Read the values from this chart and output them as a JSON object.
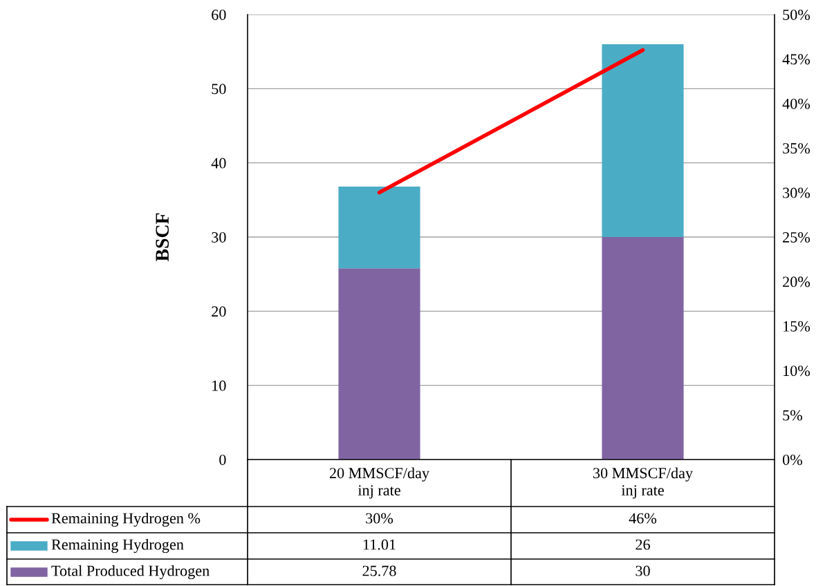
{
  "chart_data": {
    "type": "bar",
    "stacked": true,
    "ylabel": "BSCF",
    "categories": [
      "20 MMSCF/day\ninj rate",
      "30 MMSCF/day\ninj rate"
    ],
    "series": [
      {
        "name": "Total Produced Hydrogen",
        "color": "#8064a2",
        "values": [
          25.78,
          30
        ],
        "value_labels": [
          "25.78",
          "30"
        ]
      },
      {
        "name": "Remaining Hydrogen",
        "color": "#4bacc6",
        "values": [
          11.01,
          26
        ],
        "value_labels": [
          "11.01",
          "26"
        ]
      },
      {
        "name": "Remaining Hydrogen %",
        "type": "line",
        "axis": "y2",
        "color": "#ff0000",
        "values": [
          30,
          46
        ],
        "value_labels": [
          "30%",
          "46%"
        ]
      }
    ],
    "ylim": [
      0,
      60
    ],
    "yticks": [
      0,
      10,
      20,
      30,
      40,
      50,
      60
    ],
    "y2lim": [
      0,
      50
    ],
    "y2ticks": [
      {
        "value": 0,
        "label": "0%"
      },
      {
        "value": 5,
        "label": "5%"
      },
      {
        "value": 10,
        "label": "10%"
      },
      {
        "value": 15,
        "label": "15%"
      },
      {
        "value": 20,
        "label": "20%"
      },
      {
        "value": 25,
        "label": "25%"
      },
      {
        "value": 30,
        "label": "30%"
      },
      {
        "value": 35,
        "label": "35%"
      },
      {
        "value": 40,
        "label": "40%"
      },
      {
        "value": 45,
        "label": "45%"
      },
      {
        "value": 50,
        "label": "50%"
      }
    ],
    "grid": "y",
    "legend": "bottom",
    "marker": "none",
    "line_style": "solid"
  }
}
